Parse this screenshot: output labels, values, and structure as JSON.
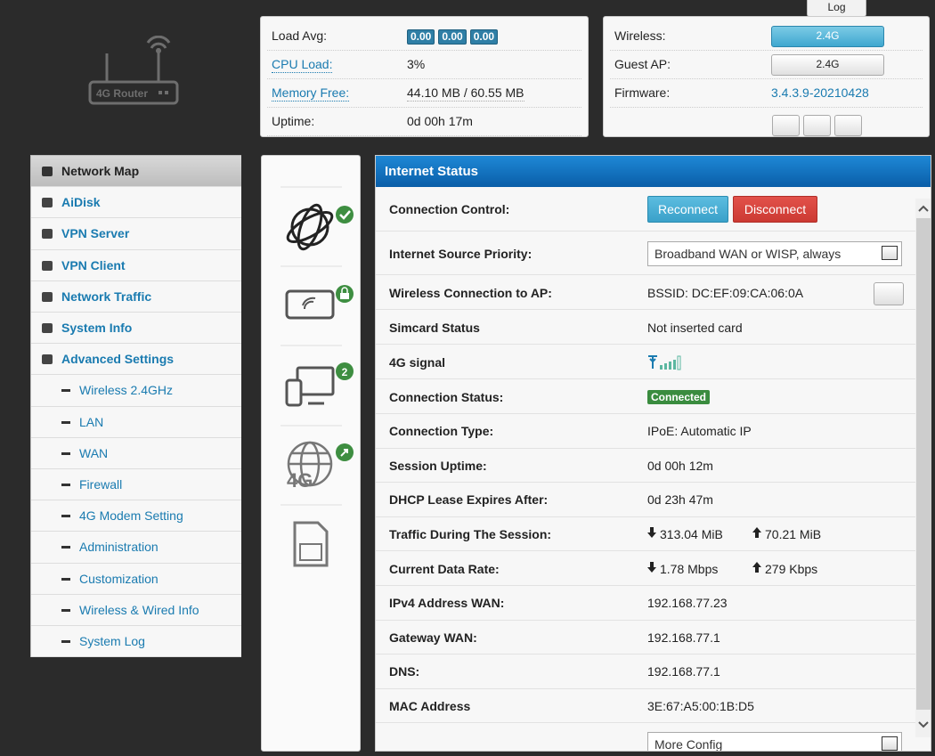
{
  "header": {
    "log": "Log",
    "logo": "4G Router"
  },
  "system": {
    "rows": [
      {
        "label": "Load Avg:",
        "values": [
          "0.00",
          "0.00",
          "0.00"
        ]
      },
      {
        "label": "CPU Load:",
        "value": "3%"
      },
      {
        "label": "Memory Free:",
        "value": "44.10 MB / 60.55 MB"
      },
      {
        "label": "Uptime:",
        "value": "0d 00h 17m"
      }
    ]
  },
  "radio": {
    "rows": [
      {
        "label": "Wireless:",
        "button": "2.4G"
      },
      {
        "label": "Guest AP:",
        "button": "2.4G"
      },
      {
        "label": "Firmware:",
        "value": "3.4.3.9-20210428"
      }
    ]
  },
  "menu": {
    "items": [
      "Network Map",
      "AiDisk",
      "VPN Server",
      "VPN Client",
      "Network Traffic",
      "System Info",
      "Advanced Settings"
    ],
    "advanced_items": [
      "Wireless 2.4GHz",
      "LAN",
      "WAN",
      "Firewall",
      "4G Modem Setting",
      "Administration",
      "Customization",
      "Wireless & Wired Info",
      "System Log"
    ]
  },
  "devices": {
    "clients": "2"
  },
  "internet_status": {
    "title": "Internet Status",
    "rows": [
      {
        "label": "Connection Control:",
        "buttons": [
          "Reconnect",
          "Disconnect"
        ]
      },
      {
        "label": "Internet Source Priority:",
        "select": "Broadband WAN or WISP, always"
      },
      {
        "label": "Wireless Connection to AP:",
        "value": "BSSID: DC:EF:09:CA:06:0A"
      },
      {
        "label": "Simcard Status",
        "value": "Not inserted card"
      },
      {
        "label": "4G signal"
      },
      {
        "label": "Connection Status:",
        "badge": "Connected"
      },
      {
        "label": "Connection Type:",
        "value": "IPoE: Automatic IP"
      },
      {
        "label": "Session Uptime:",
        "value": "0d 00h 12m"
      },
      {
        "label": "DHCP Lease Expires After:",
        "value": "0d 23h 47m"
      },
      {
        "label": "Traffic During The Session:",
        "down": "313.04 MiB",
        "up": "70.21 MiB"
      },
      {
        "label": "Current Data Rate:",
        "down": "1.78 Mbps",
        "up": "279 Kbps"
      },
      {
        "label": "IPv4 Address WAN:",
        "value": "192.168.77.23"
      },
      {
        "label": "Gateway WAN:",
        "value": "192.168.77.1"
      },
      {
        "label": "DNS:",
        "value": "192.168.77.1"
      },
      {
        "label": "MAC Address",
        "value": "3E:67:A5:00:1B:D5"
      }
    ],
    "more_config": "More Config"
  }
}
